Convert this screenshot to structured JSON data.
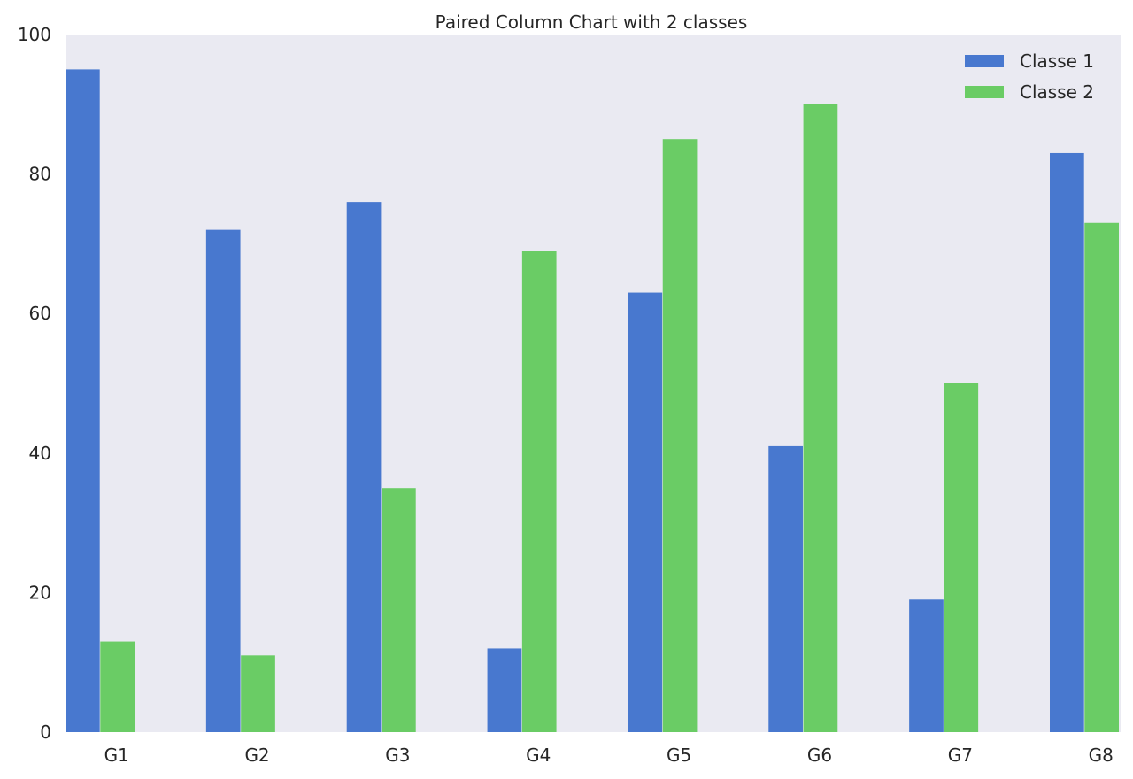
{
  "chart_data": {
    "type": "bar",
    "title": "Paired Column Chart with 2 classes",
    "xlabel": "",
    "ylabel": "",
    "categories": [
      "G1",
      "G2",
      "G3",
      "G4",
      "G5",
      "G6",
      "G7",
      "G8"
    ],
    "series": [
      {
        "name": "Classe 1",
        "color": "#4878cf",
        "values": [
          95,
          72,
          76,
          12,
          63,
          41,
          19,
          83
        ]
      },
      {
        "name": "Classe 2",
        "color": "#6acc65",
        "values": [
          13,
          11,
          35,
          69,
          85,
          90,
          50,
          73
        ]
      }
    ],
    "ylim": [
      0,
      100
    ],
    "yticks": [
      0,
      20,
      40,
      60,
      80,
      100
    ],
    "grid": false,
    "legend_position": "top-right",
    "plot_background": "#eaeaf2"
  }
}
